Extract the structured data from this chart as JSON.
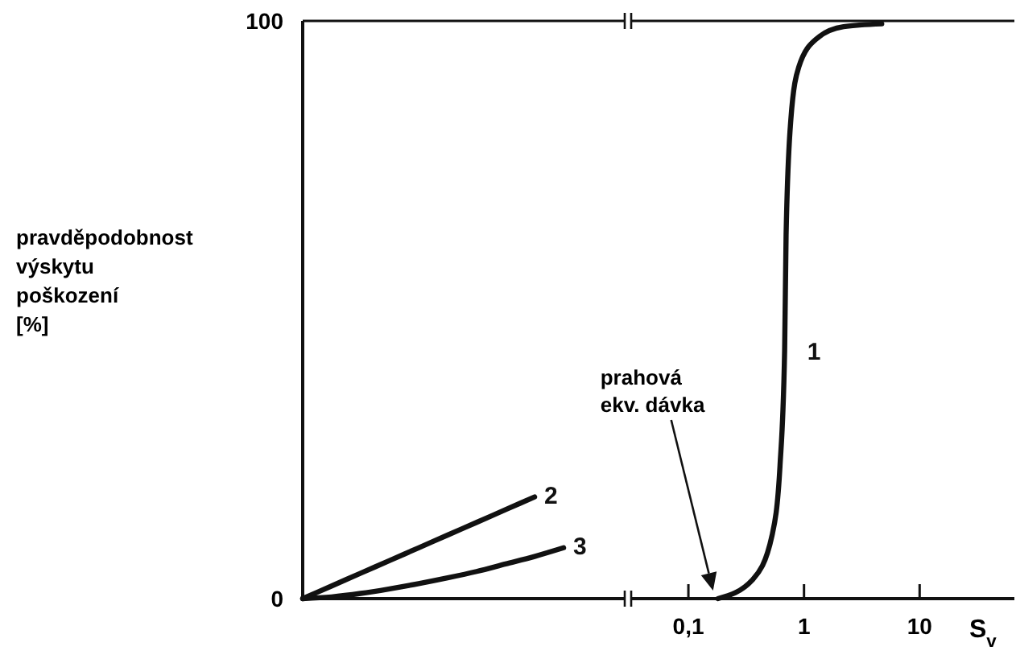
{
  "chart_data": [
    {
      "type": "line",
      "ylabel": "pravděpodobnost výskytu poškození [%]",
      "categories": [
        null,
        null,
        null,
        null,
        null,
        null,
        null,
        null,
        null,
        null,
        null
      ],
      "ylim": [
        0,
        100
      ],
      "yticks": [
        0,
        100
      ],
      "marker": "none",
      "line_style": "solid",
      "series": [
        {
          "name": "2",
          "color": "#111111",
          "values": [
            0,
            2.2,
            4.4,
            6.6,
            8.8,
            11,
            13.2,
            15.4,
            17.6,
            null,
            null
          ]
        },
        {
          "name": "3",
          "color": "#111111",
          "values": [
            0,
            0.3,
            0.9,
            1.7,
            2.6,
            3.6,
            4.7,
            6,
            7.3,
            8.8,
            null
          ]
        }
      ]
    },
    {
      "type": "line",
      "xlabel": "S$_{v}$",
      "log": "x",
      "xlim": [
        0.032,
        66
      ],
      "xticks": [
        {
          "value": 0.1,
          "label": "0,1"
        },
        1,
        10
      ],
      "ylim": [
        0,
        100
      ],
      "tick_labels": "x",
      "marker": "none",
      "line_style": "solid",
      "annotations": [
        "prahová ekv. dávka"
      ],
      "series": [
        {
          "name": "1",
          "color": "#111111",
          "x": [
            0.18,
            0.36,
            0.53,
            0.62,
            0.68,
            0.7,
            0.77,
            0.9,
            1.3,
            2.2,
            4.7
          ],
          "values": [
            0,
            3.3,
            11,
            23,
            43,
            63,
            83,
            92,
            97,
            99,
            99.5
          ]
        }
      ]
    }
  ]
}
